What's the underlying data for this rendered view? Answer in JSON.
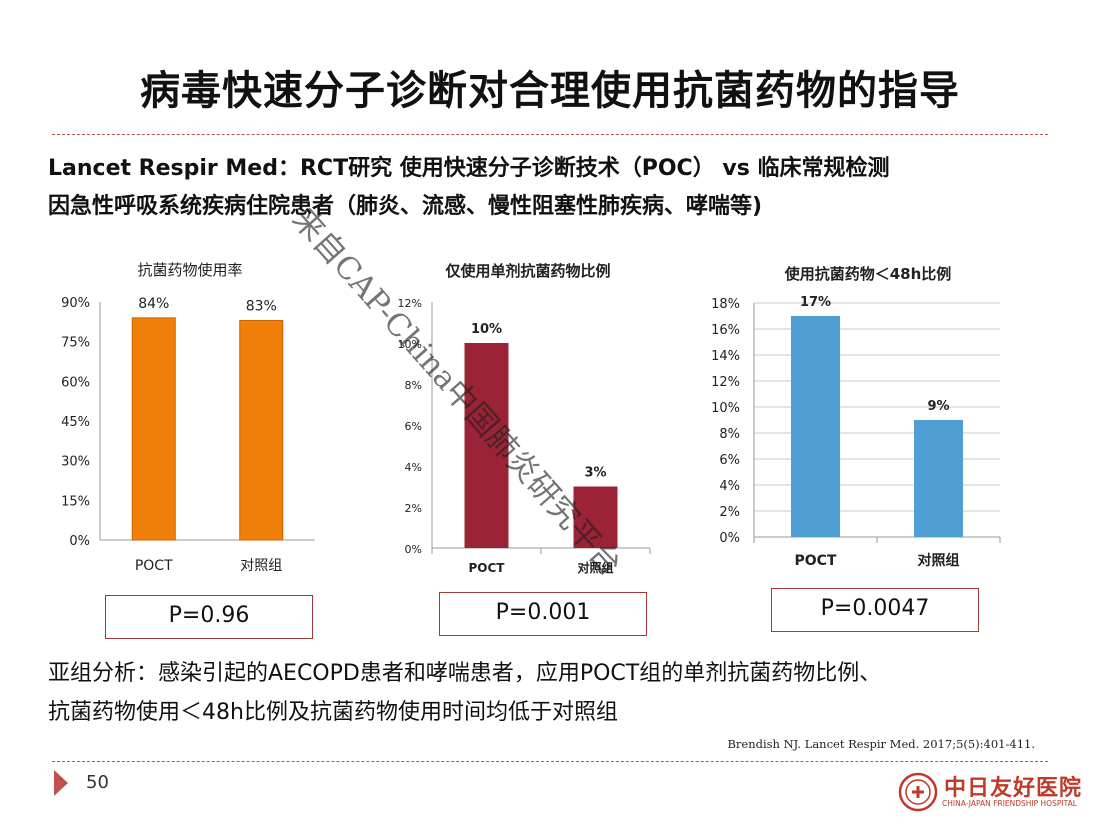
{
  "title": "病毒快速分子诊断对合理使用抗菌药物的指导",
  "intro": {
    "line1": "Lancet Respir Med：RCT研究  使用快速分子诊断技术（POC） vs  临床常规检测",
    "line2": "因急性呼吸系统疾病住院患者（肺炎、流感、慢性阻塞性肺疾病、哮喘等)"
  },
  "chart_data": [
    {
      "type": "bar",
      "title": "抗菌药物使用率",
      "categories": [
        "POCT",
        "对照组"
      ],
      "values": [
        84,
        83
      ],
      "value_labels": [
        "84%",
        "83%"
      ],
      "ylim": [
        0,
        90
      ],
      "yticks": [
        "0%",
        "15%",
        "30%",
        "45%",
        "60%",
        "75%",
        "90%"
      ],
      "color": "#f07f09",
      "grid": false
    },
    {
      "type": "bar",
      "title": "仅使用单剂抗菌药物比例",
      "categories": [
        "POCT",
        "对照组"
      ],
      "values": [
        10,
        3
      ],
      "value_labels": [
        "10%",
        "3%"
      ],
      "ylim": [
        0,
        12
      ],
      "yticks": [
        "0%",
        "2%",
        "4%",
        "6%",
        "8%",
        "10%",
        "12%"
      ],
      "color": "#9b2335",
      "grid": false
    },
    {
      "type": "bar",
      "title": "使用抗菌药物＜48h比例",
      "categories": [
        "POCT",
        "对照组"
      ],
      "values": [
        17,
        9
      ],
      "value_labels": [
        "17%",
        "9%"
      ],
      "ylim": [
        0,
        18
      ],
      "yticks": [
        "0%",
        "2%",
        "4%",
        "6%",
        "8%",
        "10%",
        "12%",
        "14%",
        "16%",
        "18%"
      ],
      "color": "#4f9fd5",
      "grid": true
    }
  ],
  "pvalues": [
    "P=0.96",
    "P=0.001",
    "P=0.0047"
  ],
  "subgroup": {
    "line1": "亚组分析：感染引起的AECOPD患者和哮喘患者，应用POCT组的单剂抗菌药物比例、",
    "line2": "抗菌药物使用＜48h比例及抗菌药物使用时间均低于对照组"
  },
  "citation": "Brendish NJ. Lancet Respir Med. 2017;5(5):401-411.",
  "page_number": "50",
  "logo": {
    "cn": "中日友好医院",
    "en": "CHINA-JAPAN FRIENDSHIP HOSPITAL"
  },
  "watermark": "来自CAP-China中国肺炎研究平台"
}
